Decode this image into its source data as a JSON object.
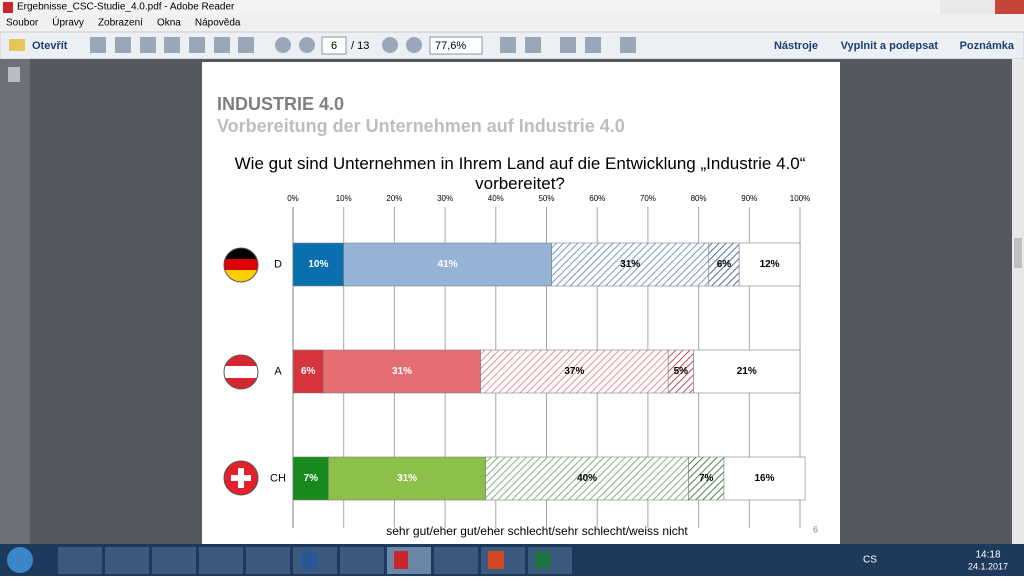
{
  "window": {
    "title": "Ergebnisse_CSC-Studie_4.0.pdf - Adobe Reader"
  },
  "menu": [
    "Soubor",
    "Úpravy",
    "Zobrazení",
    "Okna",
    "Nápověda"
  ],
  "toolbar": {
    "open": "Otevřít",
    "page": "6",
    "pages": "/ 13",
    "zoom": "77,6%",
    "tools": "Nástroje",
    "fill_sign": "Vyplnit a podepsat",
    "comment": "Poznámka"
  },
  "document": {
    "heading": "INDUSTRIE 4.0",
    "subheading": "Vorbereitung der Unternehmen auf Industrie 4.0",
    "page_number": "6",
    "chart_data": {
      "type": "bar",
      "orientation": "horizontal",
      "stacked": true,
      "title": "Wie gut sind Unternehmen in Ihrem Land auf die Entwicklung „Industrie 4.0“ vorbereitet?",
      "legend_text": "sehr gut/eher gut/eher schlecht/sehr schlecht/weiss nicht",
      "categories": [
        "D",
        "A",
        "CH"
      ],
      "xlim": [
        0,
        100
      ],
      "xticks": [
        {
          "value": 0,
          "label": "0%"
        },
        {
          "value": 10,
          "label": "10%"
        },
        {
          "value": 20,
          "label": "20%"
        },
        {
          "value": 30,
          "label": "30%"
        },
        {
          "value": 40,
          "label": "40%"
        },
        {
          "value": 50,
          "label": "50%"
        },
        {
          "value": 60,
          "label": "60%"
        },
        {
          "value": 70,
          "label": "70%"
        },
        {
          "value": 80,
          "label": "80%"
        },
        {
          "value": 90,
          "label": "90%"
        },
        {
          "value": 100,
          "label": "100%"
        }
      ],
      "grid": true,
      "series": [
        {
          "colors": [
            "#0a6fae",
            "#d7353d",
            "#178a1b"
          ],
          "hatched": false,
          "label_color": "#ffffff",
          "values": [
            10,
            6,
            7
          ],
          "value_labels": [
            "10%",
            "6%",
            "7%"
          ]
        },
        {
          "colors": [
            "#95b3d7",
            "#e66e72",
            "#8cc04b"
          ],
          "hatched": false,
          "label_color": "#ffffff",
          "values": [
            41,
            31,
            31
          ],
          "value_labels": [
            "41%",
            "31%",
            "31%"
          ]
        },
        {
          "colors": [
            "#4f86b8",
            "#e0787b",
            "#5aa55a"
          ],
          "hatched": true,
          "label_color": "#000000",
          "values": [
            31,
            37,
            40
          ],
          "value_labels": [
            "31%",
            "37%",
            "40%"
          ]
        },
        {
          "colors": [
            "#1f4f86",
            "#a8262d",
            "#146b17"
          ],
          "hatched": true,
          "label_color": "#000000",
          "values": [
            6,
            5,
            7
          ],
          "value_labels": [
            "6%",
            "5%",
            "7%"
          ]
        },
        {
          "colors": [
            "#ffffff",
            "#ffffff",
            "#ffffff"
          ],
          "hatched": false,
          "label_color": "#000000",
          "values": [
            12,
            21,
            16
          ],
          "value_labels": [
            "12%",
            "21%",
            "16%"
          ]
        }
      ]
    }
  },
  "taskbar": {
    "language": "CS",
    "time": "14:18",
    "date": "24.1.2017"
  }
}
